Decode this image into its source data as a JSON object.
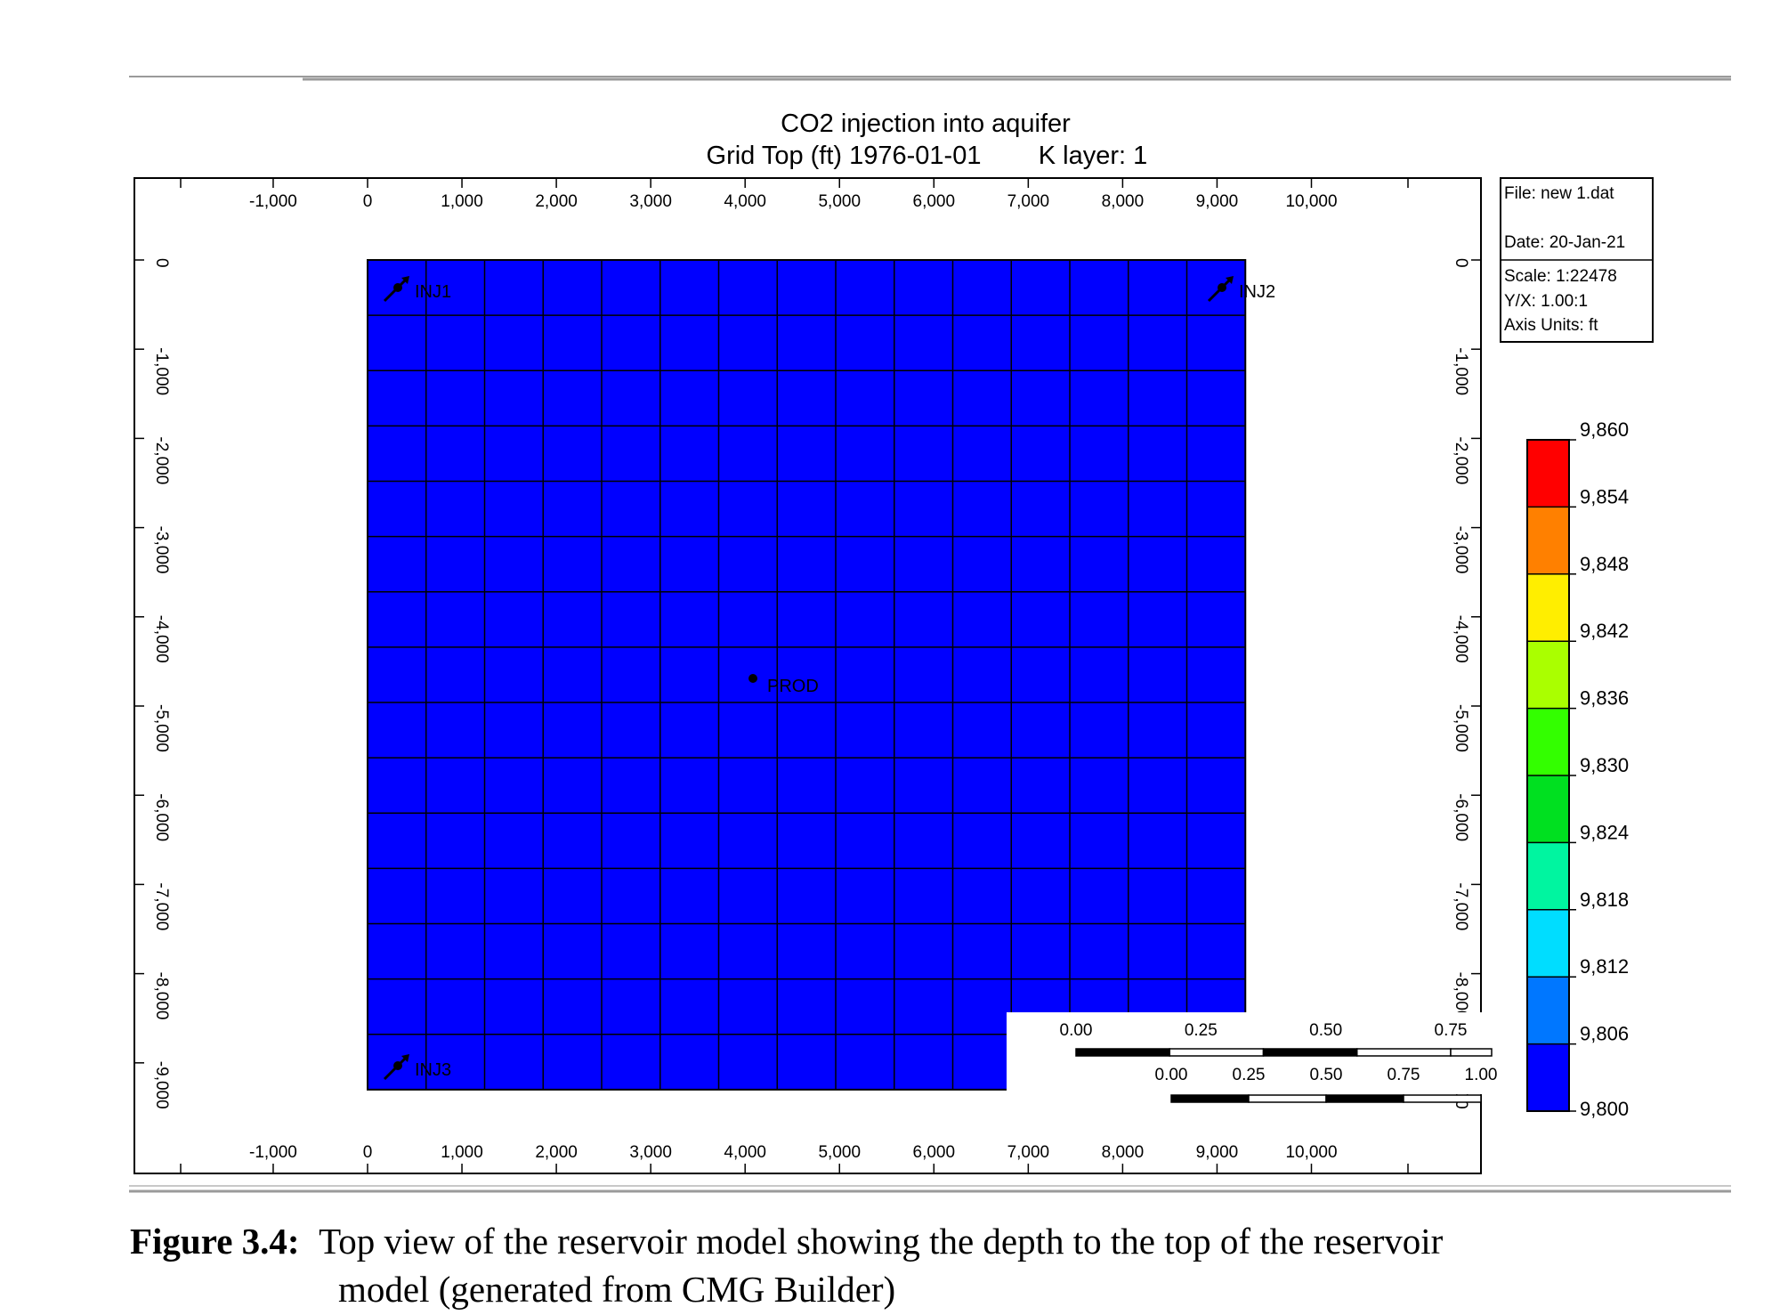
{
  "chart": {
    "title_line1": "CO2 injection into aquifer",
    "title_line2_left": "Grid Top (ft) 1976-01-01",
    "title_line2_right": "K layer: 1",
    "x_ticks": [
      "-1,000",
      "0",
      "1,000",
      "2,000",
      "3,000",
      "4,000",
      "5,000",
      "6,000",
      "7,000",
      "8,000",
      "9,000",
      "10,000"
    ],
    "y_ticks": [
      "0",
      "-1,000",
      "-2,000",
      "-3,000",
      "-4,000",
      "-5,000",
      "-6,000",
      "-7,000",
      "-8,000",
      "-9,000"
    ],
    "x_range": [
      -1000,
      10000
    ],
    "y_range": [
      0,
      -9000
    ],
    "grid": {
      "cols": 15,
      "rows": 15,
      "x_extent": [
        0,
        9300
      ],
      "y_extent": [
        0,
        -9300
      ],
      "cell_color": "#0000ff"
    },
    "wells": [
      {
        "name": "INJ1",
        "type": "injector"
      },
      {
        "name": "INJ2",
        "type": "injector"
      },
      {
        "name": "INJ3",
        "type": "injector"
      },
      {
        "name": "PROD",
        "type": "producer"
      }
    ],
    "info_box": {
      "file": "File: new 1.dat",
      "date": "Date: 20-Jan-21",
      "scale": "Scale: 1:22478",
      "yx": "Y/X: 1.00:1",
      "axis_units": "Axis Units: ft"
    },
    "scale_bar_1": [
      "0.00",
      "0.25",
      "0.50",
      "0.75"
    ],
    "scale_bar_2": [
      "0.00",
      "0.25",
      "0.50",
      "0.75",
      "1.00"
    ],
    "legend": {
      "labels": [
        "9,860",
        "9,854",
        "9,848",
        "9,842",
        "9,836",
        "9,830",
        "9,824",
        "9,818",
        "9,812",
        "9,806",
        "9,800"
      ],
      "colors": [
        "#ff0000",
        "#ff8000",
        "#ffee00",
        "#aaff00",
        "#33ff00",
        "#00e020",
        "#00f5a0",
        "#00ddff",
        "#0077ff",
        "#0000ff"
      ]
    }
  },
  "caption": {
    "label": "Figure 3.4:",
    "line1": "Top view of the reservoir model showing the depth to the top of the reservoir",
    "line2": "model (generated from CMG Builder)"
  }
}
